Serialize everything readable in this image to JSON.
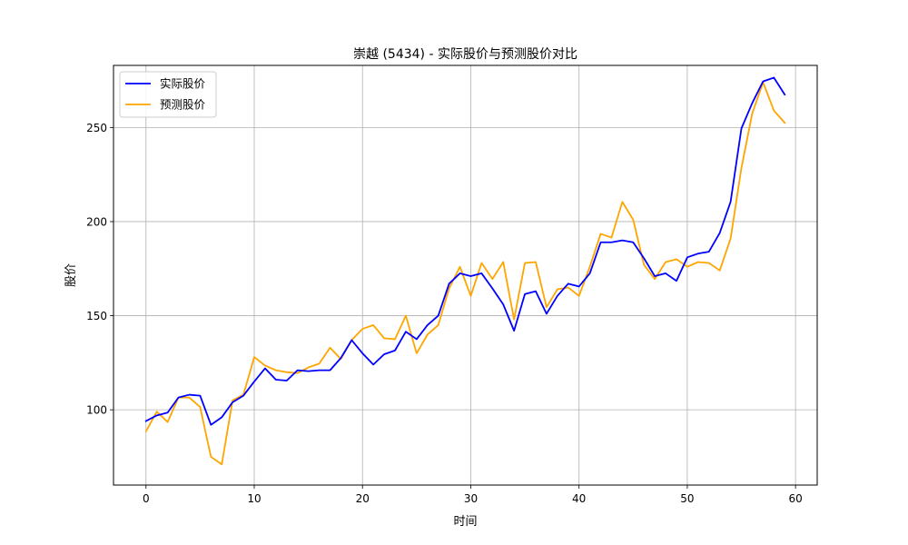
{
  "chart_data": {
    "type": "line",
    "title": "崇越 (5434) - 实际股价与预测股价对比",
    "xlabel": "时间",
    "ylabel": "股价",
    "xlim": [
      -3,
      62
    ],
    "ylim": [
      60,
      283
    ],
    "xticks": [
      0,
      10,
      20,
      30,
      40,
      50,
      60
    ],
    "yticks": [
      100,
      150,
      200,
      250
    ],
    "grid": true,
    "legend_position": "top-left",
    "x": [
      0,
      1,
      2,
      3,
      4,
      5,
      6,
      7,
      8,
      9,
      10,
      11,
      12,
      13,
      14,
      15,
      16,
      17,
      18,
      19,
      20,
      21,
      22,
      23,
      24,
      25,
      26,
      27,
      28,
      29,
      30,
      31,
      32,
      33,
      34,
      35,
      36,
      37,
      38,
      39,
      40,
      41,
      42,
      43,
      44,
      45,
      46,
      47,
      48,
      49,
      50,
      51,
      52,
      53,
      54,
      55,
      56,
      57,
      58,
      59
    ],
    "series": [
      {
        "name": "实际股价",
        "color": "#0000ff",
        "values": [
          94,
          97,
          98.5,
          106.5,
          108,
          107.5,
          92,
          96,
          104,
          107.5,
          115,
          122,
          116,
          115.5,
          121,
          120.5,
          121,
          121,
          127.5,
          137,
          130,
          124,
          129.5,
          131.5,
          141.5,
          137.5,
          145,
          150,
          167,
          172.5,
          171,
          172.5,
          164.5,
          156,
          142,
          161.5,
          163,
          151,
          160.5,
          167,
          165.5,
          172.5,
          189,
          189,
          190,
          189,
          180.5,
          171,
          172.5,
          168.5,
          181,
          183,
          184,
          194,
          210.5,
          249.5,
          263,
          274.5,
          276.5,
          267.5
        ]
      },
      {
        "name": "预测股价",
        "color": "#ffa500",
        "values": [
          88.5,
          99,
          93.5,
          106.5,
          106.5,
          101.5,
          75,
          71,
          105,
          108,
          128,
          123.5,
          121,
          120,
          119.5,
          122.5,
          124.5,
          133,
          127,
          137,
          143,
          145,
          138,
          137.5,
          150,
          130,
          140,
          145,
          164.5,
          176,
          160.5,
          178,
          169.5,
          178.5,
          148,
          178,
          178.5,
          154.5,
          164,
          165,
          160.5,
          176,
          193.5,
          191.5,
          210.5,
          201,
          177,
          169.5,
          178.5,
          180,
          176,
          178.5,
          178,
          174,
          191,
          228.5,
          257.5,
          274,
          259,
          252.5
        ]
      }
    ]
  }
}
